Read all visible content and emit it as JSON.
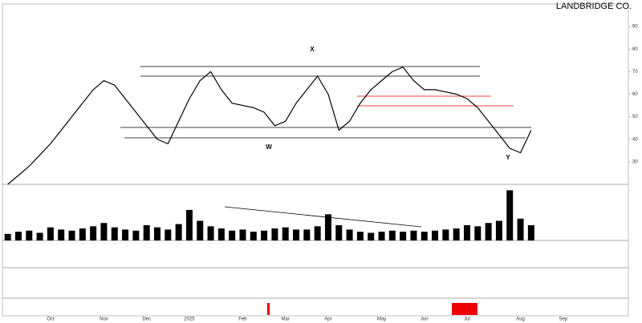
{
  "chart_data": {
    "type": "line",
    "title": "LANDBRIDGE CO.",
    "annotations": [
      "X",
      "W",
      "Y"
    ],
    "categories": [
      null,
      null,
      null,
      null,
      "Oct",
      null,
      null,
      null,
      null,
      "Nov",
      null,
      null,
      null,
      "Dec",
      null,
      null,
      null,
      "2025",
      null,
      null,
      null,
      null,
      "Feb",
      null,
      null,
      null,
      "Mar",
      null,
      null,
      null,
      "Apr",
      null,
      null,
      null,
      null,
      "May",
      null,
      null,
      null,
      "Jun",
      null,
      null,
      null,
      "Jul",
      null,
      null,
      null,
      null,
      "Aug",
      null,
      null,
      null,
      "Sep",
      null,
      null,
      null,
      null,
      null
    ],
    "series": [
      {
        "name": "Price",
        "color": "#000000",
        "values": [
          20,
          24,
          28,
          33,
          38,
          44,
          50,
          56,
          62,
          66,
          64,
          58,
          52,
          46,
          40,
          38,
          48,
          58,
          66,
          70,
          62,
          56,
          55,
          54,
          52,
          46,
          48,
          56,
          62,
          68,
          60,
          44,
          48,
          56,
          62,
          66,
          70,
          72,
          66,
          62,
          62,
          61,
          60,
          58,
          54,
          48,
          42,
          36,
          34,
          44,
          null,
          null,
          null,
          null,
          null,
          null,
          null,
          null
        ]
      },
      {
        "name": "Volume",
        "color": "#000000",
        "values": [
          0.6,
          0.8,
          0.9,
          0.7,
          1.2,
          1.0,
          0.9,
          1.1,
          1.3,
          1.6,
          1.2,
          1.0,
          0.9,
          1.4,
          1.2,
          1.0,
          1.5,
          2.8,
          1.8,
          1.3,
          1.1,
          0.9,
          1.0,
          0.8,
          0.9,
          1.1,
          1.2,
          1.0,
          1.0,
          1.3,
          2.4,
          1.4,
          1.0,
          0.8,
          0.7,
          0.8,
          0.9,
          0.8,
          0.9,
          0.8,
          0.9,
          1.0,
          1.1,
          1.4,
          1.3,
          1.6,
          1.8,
          4.6,
          2.0,
          1.4,
          null,
          null,
          null,
          null,
          null,
          null,
          null,
          null
        ]
      }
    ],
    "ylim": [
      20,
      100
    ],
    "yticks": [
      30,
      40,
      50,
      60,
      70,
      80,
      90
    ],
    "vlim": [
      0,
      5
    ]
  }
}
